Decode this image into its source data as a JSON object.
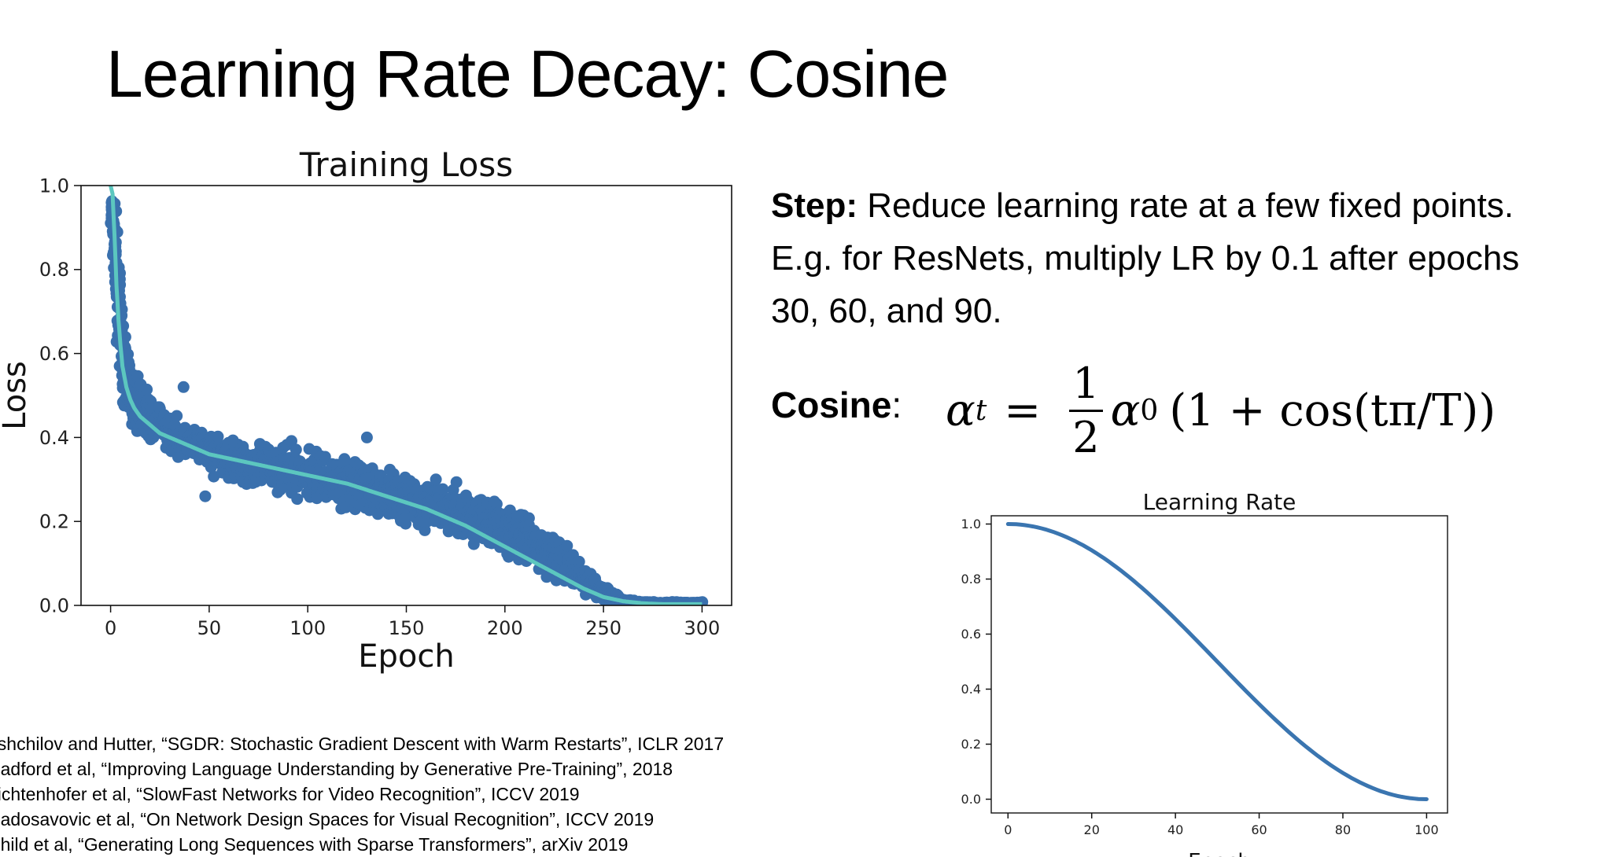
{
  "slide": {
    "title_main": "Learning Rate Decay",
    "title_sep": ": ",
    "title_sub": "Cosine"
  },
  "step": {
    "label": "Step:",
    "line1": " Reduce learning rate at a few fixed points.",
    "line2": "E.g. for ResNets, multiply LR by 0.1 after epochs",
    "line3": "30, 60, and 90."
  },
  "cosine": {
    "label": "Cosine",
    "colon": ":",
    "formula": {
      "lhs": "α",
      "lhs_sub": "t",
      "eq": "=",
      "num": "1",
      "den": "2",
      "alpha0": "α",
      "alpha0_sub": "0",
      "rest": "(1 + cos(tπ/T))"
    }
  },
  "references": [
    "oshchilov and Hutter, “SGDR: Stochastic Gradient Descent with Warm Restarts”, ICLR 2017",
    "Radford et al, “Improving Language Understanding by Generative Pre-Training”, 2018",
    "eichtenhofer et al, “SlowFast Networks for Video Recognition”, ICCV 2019",
    "Radosavovic et al, “On Network Design Spaces for Visual Recognition”, ICCV 2019",
    "Child et al, “Generating Long Sequences with Sparse Transformers”, arXiv 2019"
  ],
  "chart_data": [
    {
      "type": "scatter",
      "title": "Training Loss",
      "xlabel": "Epoch",
      "ylabel": "Loss",
      "xlim": [
        -15,
        315
      ],
      "ylim": [
        0,
        1.0
      ],
      "xticks": [
        0,
        50,
        100,
        150,
        200,
        250,
        300
      ],
      "yticks": [
        0.0,
        0.2,
        0.4,
        0.6,
        0.8,
        1.0
      ],
      "ytick_labels": [
        "0.0",
        "0.2",
        "0.4",
        "0.6",
        "0.8",
        "1.0"
      ],
      "grid": false,
      "scatter_color": "#3a70ad",
      "line_color": "#5cc7bf",
      "series": [
        {
          "kind": "smoothed-line",
          "x": [
            0,
            1,
            2,
            3,
            4,
            5,
            6,
            8,
            10,
            12,
            15,
            20,
            25,
            30,
            40,
            50,
            60,
            80,
            100,
            120,
            140,
            160,
            180,
            200,
            220,
            240,
            250,
            260,
            270,
            280,
            300
          ],
          "y": [
            1.0,
            0.98,
            0.88,
            0.76,
            0.68,
            0.62,
            0.57,
            0.52,
            0.49,
            0.47,
            0.45,
            0.43,
            0.41,
            0.4,
            0.38,
            0.36,
            0.35,
            0.33,
            0.31,
            0.29,
            0.26,
            0.23,
            0.19,
            0.14,
            0.09,
            0.04,
            0.02,
            0.01,
            0.005,
            0.003,
            0.003
          ]
        },
        {
          "kind": "scatter-band",
          "x": [
            1,
            3,
            6,
            10,
            20,
            30,
            40,
            50,
            70,
            90,
            110,
            130,
            150,
            170,
            190,
            210,
            230,
            240,
            250,
            260,
            270,
            300
          ],
          "y_low": [
            0.85,
            0.62,
            0.47,
            0.42,
            0.37,
            0.35,
            0.33,
            0.3,
            0.27,
            0.24,
            0.22,
            0.2,
            0.17,
            0.15,
            0.12,
            0.08,
            0.03,
            0.01,
            0.0,
            0.0,
            0.0,
            0.0
          ],
          "y_high": [
            1.0,
            0.95,
            0.72,
            0.6,
            0.52,
            0.47,
            0.45,
            0.43,
            0.41,
            0.4,
            0.38,
            0.36,
            0.34,
            0.31,
            0.28,
            0.23,
            0.17,
            0.11,
            0.06,
            0.02,
            0.01,
            0.01
          ],
          "outliers": [
            [
              37,
              0.52
            ],
            [
              48,
              0.26
            ],
            [
              130,
              0.4
            ],
            [
              165,
              0.3
            ]
          ]
        }
      ]
    },
    {
      "type": "line",
      "title": "Learning Rate",
      "xlabel": "Epoch",
      "ylabel": "",
      "xlim": [
        -4,
        105
      ],
      "ylim": [
        -0.05,
        1.03
      ],
      "xticks": [
        0,
        20,
        40,
        60,
        80,
        100
      ],
      "yticks": [
        0.0,
        0.2,
        0.4,
        0.6,
        0.8,
        1.0
      ],
      "ytick_labels": [
        "0.0",
        "0.2",
        "0.4",
        "0.6",
        "0.8",
        "1.0"
      ],
      "grid": false,
      "line_color": "#3a75b0",
      "series": [
        {
          "x": [
            0,
            10,
            20,
            30,
            40,
            50,
            60,
            70,
            80,
            90,
            100
          ],
          "y": [
            1.0,
            0.976,
            0.905,
            0.794,
            0.655,
            0.5,
            0.345,
            0.206,
            0.095,
            0.024,
            0.0
          ]
        }
      ]
    }
  ]
}
